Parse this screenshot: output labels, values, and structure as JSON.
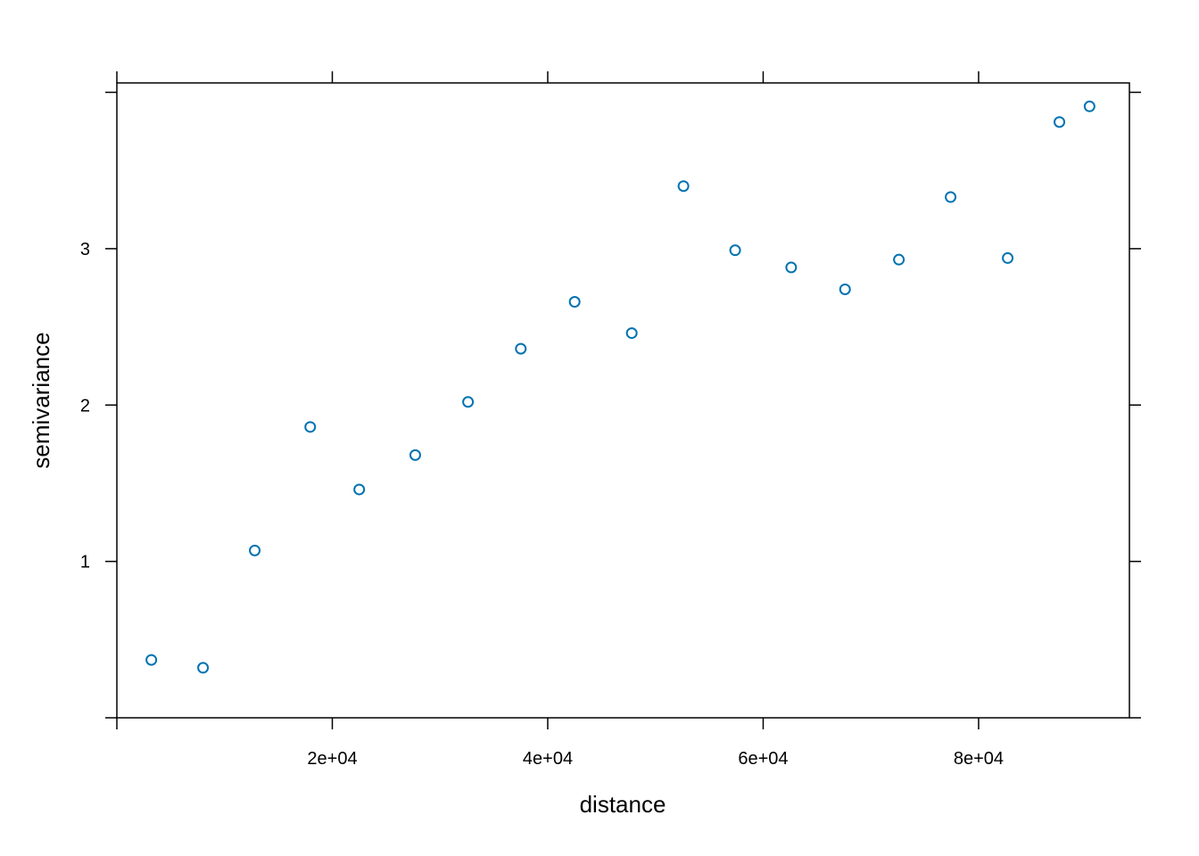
{
  "chart_data": {
    "type": "scatter",
    "title": "",
    "xlabel": "distance",
    "ylabel": "semivariance",
    "xlim": [
      0,
      94000
    ],
    "ylim": [
      0,
      4.06
    ],
    "x_ticks": [
      {
        "value": 0,
        "label": ""
      },
      {
        "value": 20000,
        "label": "2e+04"
      },
      {
        "value": 40000,
        "label": "4e+04"
      },
      {
        "value": 60000,
        "label": "6e+04"
      },
      {
        "value": 80000,
        "label": "8e+04"
      }
    ],
    "y_ticks": [
      {
        "value": 0,
        "label": ""
      },
      {
        "value": 1,
        "label": "1"
      },
      {
        "value": 2,
        "label": "2"
      },
      {
        "value": 3,
        "label": "3"
      },
      {
        "value": 4,
        "label": ""
      }
    ],
    "grid": false,
    "marker_color": "#0072B2",
    "marker": "open-circle",
    "points": [
      {
        "x": 3200,
        "y": 0.37
      },
      {
        "x": 8000,
        "y": 0.32
      },
      {
        "x": 12800,
        "y": 1.07
      },
      {
        "x": 17950,
        "y": 1.86
      },
      {
        "x": 22500,
        "y": 1.46
      },
      {
        "x": 27700,
        "y": 1.68
      },
      {
        "x": 32600,
        "y": 2.02
      },
      {
        "x": 37500,
        "y": 2.36
      },
      {
        "x": 42500,
        "y": 2.66
      },
      {
        "x": 47800,
        "y": 2.46
      },
      {
        "x": 52600,
        "y": 3.4
      },
      {
        "x": 57400,
        "y": 2.99
      },
      {
        "x": 62600,
        "y": 2.88
      },
      {
        "x": 67600,
        "y": 2.74
      },
      {
        "x": 72600,
        "y": 2.93
      },
      {
        "x": 77400,
        "y": 3.33
      },
      {
        "x": 82700,
        "y": 2.94
      },
      {
        "x": 87500,
        "y": 3.81
      },
      {
        "x": 90300,
        "y": 3.91
      }
    ]
  }
}
